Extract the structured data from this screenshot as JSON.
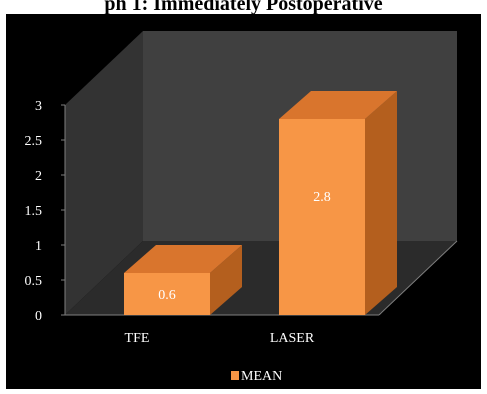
{
  "title": "ph 1: Immediately Postoperative",
  "chart_data": {
    "type": "bar",
    "categories": [
      "TFE",
      "LASER"
    ],
    "series": [
      {
        "name": "MEAN",
        "values": [
          0.6,
          2.8
        ]
      }
    ],
    "data_labels": [
      "0.6",
      "2.8"
    ],
    "y_ticks": [
      "0",
      "0.5",
      "1",
      "1.5",
      "2",
      "2.5",
      "3"
    ],
    "ylim": [
      0,
      3
    ],
    "legend_position": "bottom",
    "style": "3d",
    "colors": {
      "bar_front": "#f79646",
      "bar_top": "#d9752d",
      "bar_side": "#b45f1e",
      "wall": "#404040",
      "floor": "#2b2b2b",
      "background": "#000000"
    }
  }
}
